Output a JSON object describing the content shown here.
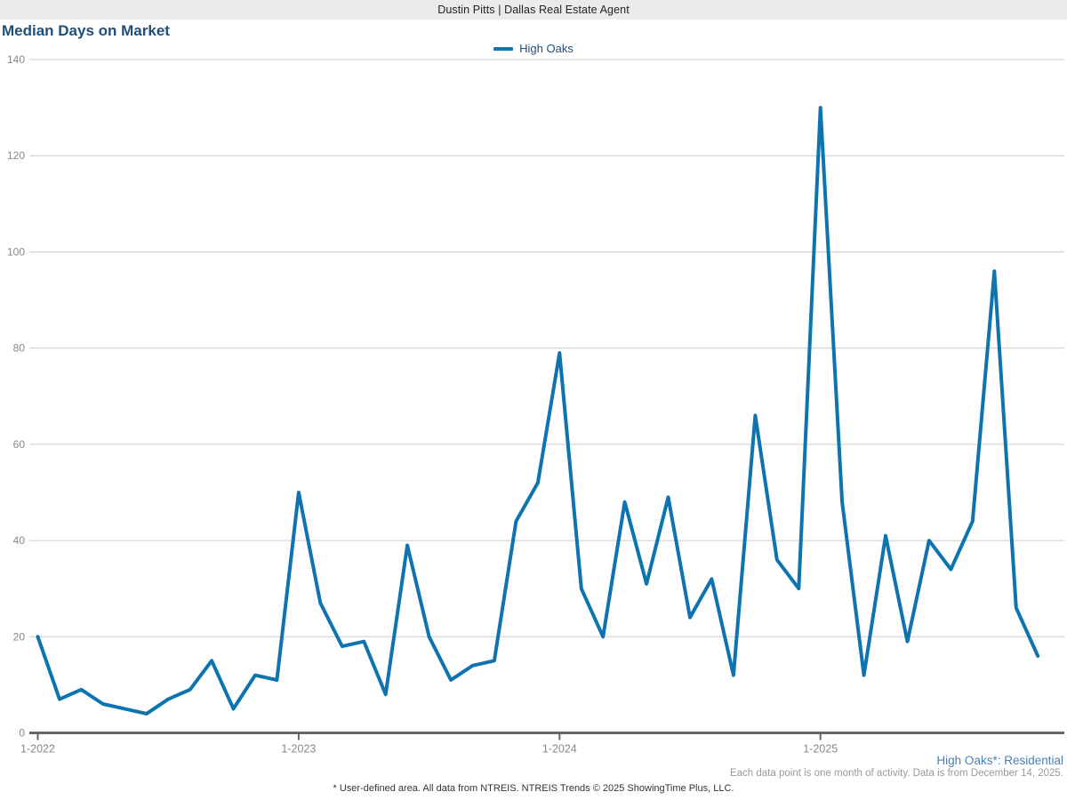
{
  "header": {
    "site_title": "Dustin Pitts | Dallas Real Estate Agent"
  },
  "title": "Median Days on Market",
  "legend": {
    "label": "High Oaks"
  },
  "notes": {
    "residential": "High Oaks*: Residential",
    "data_point": "Each data point is one month of activity. Data is from December 14, 2025."
  },
  "footer": {
    "disclaimer": "* User-defined area. All data from NTREIS. NTREIS Trends © 2025 ShowingTime Plus, LLC."
  },
  "colors": {
    "line": "#0e74b0",
    "grid": "#cccccc",
    "axis": "#666666",
    "tick_label": "#888888",
    "title": "#1f4e79",
    "header_bg": "#ebebeb"
  },
  "chart_data": {
    "type": "line",
    "title": "Median Days on Market",
    "xlabel": "",
    "ylabel": "",
    "ylim": [
      0,
      140
    ],
    "y_ticks": [
      0,
      20,
      40,
      60,
      80,
      100,
      120,
      140
    ],
    "grid": "horizontal",
    "legend_position": "top-center",
    "start_month": "1-2022",
    "frequency": "monthly",
    "end_month": "11-2025",
    "x_tick_labels": [
      "1-2022",
      "1-2023",
      "1-2024",
      "1-2025"
    ],
    "x_tick_month_indices": [
      0,
      12,
      24,
      36
    ],
    "series": [
      {
        "name": "High Oaks",
        "color": "#0e74b0",
        "values": [
          20,
          7,
          9,
          6,
          5,
          4,
          7,
          9,
          15,
          5,
          12,
          11,
          50,
          27,
          18,
          19,
          8,
          39,
          20,
          11,
          14,
          15,
          44,
          52,
          79,
          30,
          20,
          48,
          31,
          49,
          24,
          32,
          12,
          66,
          36,
          30,
          130,
          48,
          12,
          41,
          19,
          40,
          34,
          44,
          96,
          26,
          16
        ]
      }
    ]
  }
}
